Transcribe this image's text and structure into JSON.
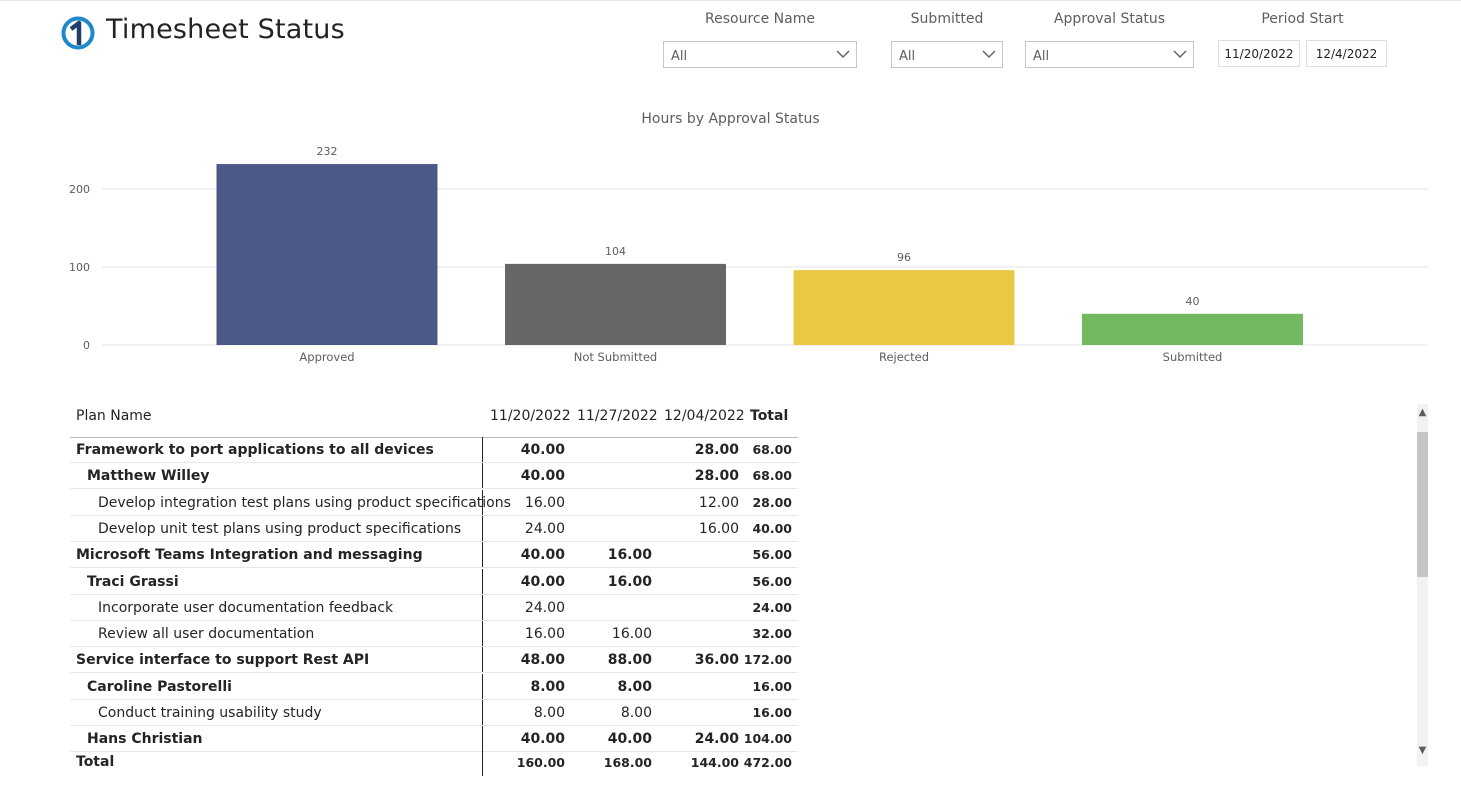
{
  "header": {
    "title": "Timesheet Status"
  },
  "filters": {
    "resource_name": {
      "label": "Resource Name",
      "value": "All"
    },
    "submitted": {
      "label": "Submitted",
      "value": "All"
    },
    "approval_status": {
      "label": "Approval Status",
      "value": "All"
    },
    "period_start": {
      "label": "Period Start",
      "from": "11/20/2022",
      "to": "12/4/2022"
    }
  },
  "chart_data": {
    "type": "bar",
    "title": "Hours by Approval Status",
    "categories": [
      "Approved",
      "Not Submitted",
      "Rejected",
      "Submitted"
    ],
    "values": [
      232,
      104,
      96,
      40
    ],
    "colors": [
      "#4b5888",
      "#666666",
      "#ebc844",
      "#72b962"
    ],
    "ylim": [
      0,
      240
    ],
    "yticks": [
      0,
      100,
      200
    ],
    "grid": true,
    "data_labels": true
  },
  "table": {
    "headers": {
      "name": "Plan Name",
      "d1": "11/20/2022",
      "d2": "11/27/2022",
      "d3": "12/04/2022",
      "total": "Total"
    },
    "rows": [
      {
        "level": 0,
        "name": "Framework to port applications to all devices",
        "d1": "40.00",
        "d2": "",
        "d3": "28.00",
        "total": "68.00"
      },
      {
        "level": 1,
        "name": "Matthew Willey",
        "d1": "40.00",
        "d2": "",
        "d3": "28.00",
        "total": "68.00"
      },
      {
        "level": 2,
        "name": "Develop integration test plans using product specifications",
        "d1": "16.00",
        "d2": "",
        "d3": "12.00",
        "total": "28.00"
      },
      {
        "level": 2,
        "name": "Develop unit test plans using product specifications",
        "d1": "24.00",
        "d2": "",
        "d3": "16.00",
        "total": "40.00"
      },
      {
        "level": 0,
        "name": "Microsoft Teams Integration and messaging",
        "d1": "40.00",
        "d2": "16.00",
        "d3": "",
        "total": "56.00"
      },
      {
        "level": 1,
        "name": "Traci Grassi",
        "d1": "40.00",
        "d2": "16.00",
        "d3": "",
        "total": "56.00"
      },
      {
        "level": 2,
        "name": "Incorporate user documentation feedback",
        "d1": "24.00",
        "d2": "",
        "d3": "",
        "total": "24.00"
      },
      {
        "level": 2,
        "name": "Review all user documentation",
        "d1": "16.00",
        "d2": "16.00",
        "d3": "",
        "total": "32.00"
      },
      {
        "level": 0,
        "name": "Service interface to support Rest API",
        "d1": "48.00",
        "d2": "88.00",
        "d3": "36.00",
        "total": "172.00"
      },
      {
        "level": 1,
        "name": "Caroline Pastorelli",
        "d1": "8.00",
        "d2": "8.00",
        "d3": "",
        "total": "16.00"
      },
      {
        "level": 2,
        "name": "Conduct training usability study",
        "d1": "8.00",
        "d2": "8.00",
        "d3": "",
        "total": "16.00"
      },
      {
        "level": 1,
        "name": "Hans Christian",
        "d1": "40.00",
        "d2": "40.00",
        "d3": "24.00",
        "total": "104.00"
      }
    ],
    "totals": {
      "name": "Total",
      "d1": "160.00",
      "d2": "168.00",
      "d3": "144.00",
      "total": "472.00"
    }
  },
  "icons": {
    "logo": "onepager-logo-icon",
    "dropdown": "chevron-down-icon",
    "scroll_up": "▲",
    "scroll_down": "▼"
  }
}
